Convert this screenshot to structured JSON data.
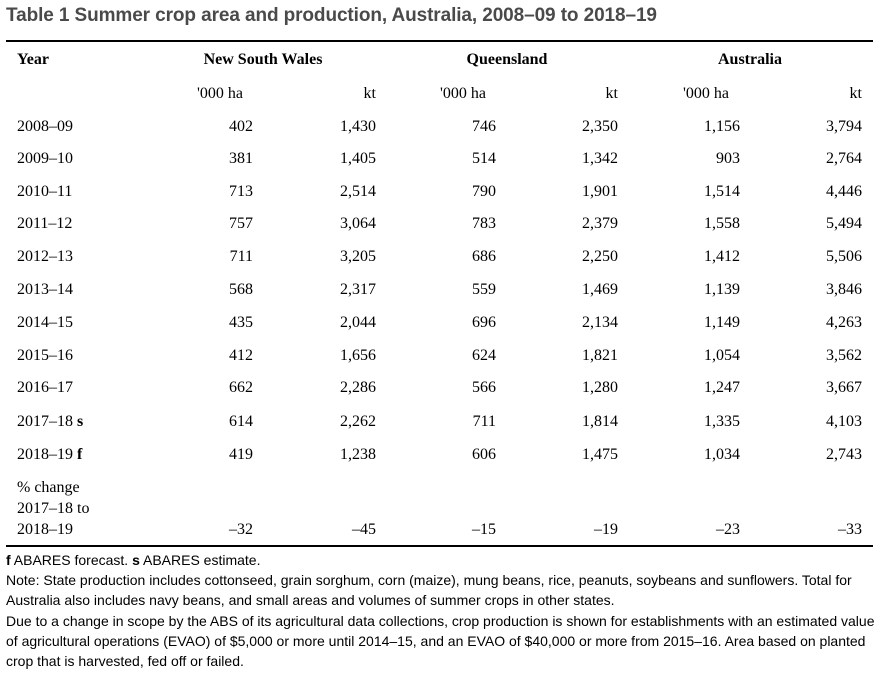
{
  "title": "Table 1 Summer crop area and production, Australia, 2008–09 to 2018–19",
  "table": {
    "year_header": "Year",
    "groups": [
      "New South Wales",
      "Queensland",
      "Australia"
    ],
    "units": [
      "'000 ha",
      "kt",
      "'000 ha",
      "kt",
      "'000 ha",
      "kt"
    ],
    "rows": [
      {
        "year": "2008–09",
        "suffix": "",
        "values": [
          "402",
          "1,430",
          "746",
          "2,350",
          "1,156",
          "3,794"
        ]
      },
      {
        "year": "2009–10",
        "suffix": "",
        "values": [
          "381",
          "1,405",
          "514",
          "1,342",
          "903",
          "2,764"
        ]
      },
      {
        "year": "2010–11",
        "suffix": "",
        "values": [
          "713",
          "2,514",
          "790",
          "1,901",
          "1,514",
          "4,446"
        ]
      },
      {
        "year": "2011–12",
        "suffix": "",
        "values": [
          "757",
          "3,064",
          "783",
          "2,379",
          "1,558",
          "5,494"
        ]
      },
      {
        "year": "2012–13",
        "suffix": "",
        "values": [
          "711",
          "3,205",
          "686",
          "2,250",
          "1,412",
          "5,506"
        ]
      },
      {
        "year": "2013–14",
        "suffix": "",
        "values": [
          "568",
          "2,317",
          "559",
          "1,469",
          "1,139",
          "3,846"
        ]
      },
      {
        "year": "2014–15",
        "suffix": "",
        "values": [
          "435",
          "2,044",
          "696",
          "2,134",
          "1,149",
          "4,263"
        ]
      },
      {
        "year": "2015–16",
        "suffix": "",
        "values": [
          "412",
          "1,656",
          "624",
          "1,821",
          "1,054",
          "3,562"
        ]
      },
      {
        "year": "2016–17",
        "suffix": "",
        "values": [
          "662",
          "2,286",
          "566",
          "1,280",
          "1,247",
          "3,667"
        ]
      },
      {
        "year": "2017–18",
        "suffix": "s",
        "values": [
          "614",
          "2,262",
          "711",
          "1,814",
          "1,335",
          "4,103"
        ]
      },
      {
        "year": "2018–19",
        "suffix": "f",
        "values": [
          "419",
          "1,238",
          "606",
          "1,475",
          "1,034",
          "2,743"
        ]
      }
    ],
    "change_row": {
      "label_lines": [
        "% change",
        "2017–18 to",
        "2018–19"
      ],
      "values": [
        "–32",
        "–45",
        "–15",
        "–19",
        "–23",
        "–33"
      ]
    }
  },
  "notes": {
    "legend_f": "f",
    "legend_f_text": " ABARES forecast. ",
    "legend_s": "s",
    "legend_s_text": " ABARES estimate.",
    "note1": "Note: State production includes cottonseed, grain sorghum, corn (maize), mung beans, rice, peanuts, soybeans and sunflowers. Total for Australia also includes navy beans, and small areas and volumes of summer crops in other states.",
    "note2": "Due to a change in scope by the ABS of its agricultural data collections, crop production is shown for establishments with an estimated value of agricultural operations (EVAO) of $5,000 or more until 2014–15, and an EVAO of $40,000 or more from 2015–16. Area based on planted crop that is harvested, fed off or failed."
  }
}
